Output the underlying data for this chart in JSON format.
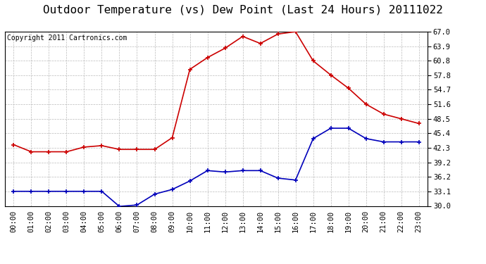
{
  "title": "Outdoor Temperature (vs) Dew Point (Last 24 Hours) 20111022",
  "copyright_text": "Copyright 2011 Cartronics.com",
  "x_labels": [
    "00:00",
    "01:00",
    "02:00",
    "03:00",
    "04:00",
    "05:00",
    "06:00",
    "07:00",
    "08:00",
    "09:00",
    "10:00",
    "11:00",
    "12:00",
    "13:00",
    "14:00",
    "15:00",
    "16:00",
    "17:00",
    "18:00",
    "19:00",
    "20:00",
    "21:00",
    "22:00",
    "23:00"
  ],
  "temp_data": [
    43.0,
    41.5,
    41.5,
    41.5,
    42.5,
    42.8,
    42.0,
    42.0,
    42.0,
    44.5,
    59.0,
    61.5,
    63.5,
    66.0,
    64.5,
    66.5,
    67.0,
    60.8,
    57.8,
    55.0,
    51.6,
    49.5,
    48.5,
    47.5
  ],
  "dew_data": [
    33.1,
    33.1,
    33.1,
    33.1,
    33.1,
    33.1,
    29.9,
    30.2,
    32.5,
    33.5,
    35.3,
    37.5,
    37.2,
    37.5,
    37.5,
    35.9,
    35.5,
    44.3,
    46.5,
    46.5,
    44.3,
    43.6,
    43.6,
    43.6
  ],
  "ylim": [
    30.0,
    67.0
  ],
  "yticks": [
    30.0,
    33.1,
    36.2,
    39.2,
    42.3,
    45.4,
    48.5,
    51.6,
    54.7,
    57.8,
    60.8,
    63.9,
    67.0
  ],
  "temp_color": "#cc0000",
  "dew_color": "#0000bb",
  "bg_color": "#ffffff",
  "plot_bg_color": "#ffffff",
  "grid_color": "#bbbbbb",
  "title_fontsize": 11.5,
  "tick_fontsize": 7.5,
  "copyright_fontsize": 7.0
}
